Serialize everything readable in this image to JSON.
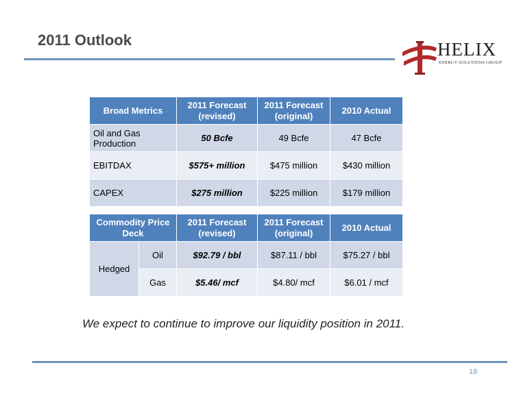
{
  "title": "2011 Outlook",
  "logo": {
    "word": "HELIX",
    "subtitle": "ENERGY SOLUTIONS GROUP"
  },
  "metrics_table": {
    "headers": [
      "Broad Metrics",
      "2011 Forecast (revised)",
      "2011 Forecast (original)",
      "2010 Actual"
    ],
    "rows": [
      [
        "Oil and Gas Production",
        "50 Bcfe",
        "49 Bcfe",
        "47 Bcfe"
      ],
      [
        "EBITDAX",
        "$575+ million",
        "$475 million",
        "$430 million"
      ],
      [
        "CAPEX",
        "$275 million",
        "$225 million",
        "$179 million"
      ]
    ]
  },
  "price_table": {
    "headers": [
      "Commodity Price Deck",
      "2011 Forecast (revised)",
      "2011 Forecast (original)",
      "2010 Actual"
    ],
    "group_label": "Hedged",
    "rows": [
      [
        "Oil",
        "$92.79 / bbl",
        "$87.11 / bbl",
        "$75.27 / bbl"
      ],
      [
        "Gas",
        "$5.46/ mcf",
        "$4.80/ mcf",
        "$6.01 / mcf"
      ]
    ]
  },
  "note": "We expect to continue to improve our liquidity position in 2011.",
  "page_number": "18",
  "colors": {
    "header_blue": "#4f81bd",
    "row_dark": "#d0d8e8",
    "row_light": "#e9edf4",
    "rule": "#6f94bc",
    "logo_red": "#b02a2a"
  }
}
